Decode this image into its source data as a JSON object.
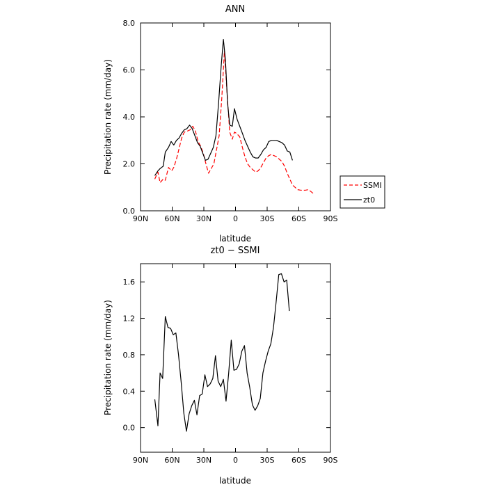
{
  "chart_data": [
    {
      "type": "line",
      "title": "ANN",
      "xlabel": "latitude",
      "ylabel": "Precipitation rate (mm/day)",
      "xlim": [
        90,
        -90
      ],
      "ylim": [
        0,
        8
      ],
      "x_ticks": [
        90,
        60,
        30,
        0,
        -30,
        -60,
        -90
      ],
      "x_tick_labels": [
        "90N",
        "60N",
        "30N",
        "0",
        "30S",
        "60S",
        "90S"
      ],
      "y_ticks": [
        0,
        2,
        4,
        6,
        8
      ],
      "y_tick_labels": [
        "0.0",
        "2.0",
        "4.0",
        "6.0",
        "8.0"
      ],
      "grid": false,
      "legend": "right",
      "series": [
        {
          "name": "SSMI",
          "color": "#ff0000",
          "style": "dashed",
          "points": [
            [
              76.5,
              1.35
            ],
            [
              73.5,
              1.65
            ],
            [
              71.5,
              1.2
            ],
            [
              68.5,
              1.35
            ],
            [
              66.5,
              1.3
            ],
            [
              63.5,
              1.85
            ],
            [
              60.5,
              1.7
            ],
            [
              58.5,
              1.85
            ],
            [
              56,
              2.2
            ],
            [
              53.5,
              2.65
            ],
            [
              51,
              3.1
            ],
            [
              48.5,
              3.35
            ],
            [
              45.5,
              3.4
            ],
            [
              43,
              3.45
            ],
            [
              40.5,
              3.6
            ],
            [
              38,
              3.4
            ],
            [
              35.5,
              2.95
            ],
            [
              33,
              2.75
            ],
            [
              30.5,
              2.45
            ],
            [
              28,
              2.0
            ],
            [
              25.5,
              1.6
            ],
            [
              23,
              1.8
            ],
            [
              20.5,
              2.0
            ],
            [
              18,
              2.6
            ],
            [
              15.5,
              3.2
            ],
            [
              13,
              4.8
            ],
            [
              10.5,
              6.8
            ],
            [
              8,
              5.0
            ],
            [
              5.5,
              3.35
            ],
            [
              3,
              3.05
            ],
            [
              1,
              3.35
            ],
            [
              -1,
              3.3
            ],
            [
              -4,
              3.15
            ],
            [
              -6.5,
              2.7
            ],
            [
              -9,
              2.3
            ],
            [
              -11.5,
              2.0
            ],
            [
              -14,
              1.85
            ],
            [
              -16.5,
              1.75
            ],
            [
              -19,
              1.65
            ],
            [
              -21.5,
              1.7
            ],
            [
              -24,
              1.85
            ],
            [
              -26.5,
              2.05
            ],
            [
              -29,
              2.25
            ],
            [
              -31.5,
              2.35
            ],
            [
              -34,
              2.4
            ],
            [
              -36.5,
              2.35
            ],
            [
              -39,
              2.3
            ],
            [
              -41.5,
              2.2
            ],
            [
              -44,
              2.1
            ],
            [
              -46.5,
              1.9
            ],
            [
              -49,
              1.6
            ],
            [
              -51.5,
              1.35
            ],
            [
              -54,
              1.1
            ],
            [
              -56.5,
              1.0
            ],
            [
              -59,
              0.9
            ],
            [
              -61.5,
              0.88
            ],
            [
              -64,
              0.87
            ],
            [
              -66.5,
              0.88
            ],
            [
              -69,
              0.9
            ],
            [
              -71.5,
              0.82
            ],
            [
              -74,
              0.73
            ]
          ]
        },
        {
          "name": "zt0",
          "color": "#000000",
          "style": "solid",
          "points": [
            [
              76.5,
              1.5
            ],
            [
              73.5,
              1.7
            ],
            [
              71.5,
              1.8
            ],
            [
              68.5,
              1.9
            ],
            [
              66.5,
              2.5
            ],
            [
              63.5,
              2.7
            ],
            [
              61,
              2.95
            ],
            [
              58.5,
              2.8
            ],
            [
              56,
              3.0
            ],
            [
              53.5,
              3.1
            ],
            [
              51,
              3.3
            ],
            [
              48.5,
              3.45
            ],
            [
              46,
              3.5
            ],
            [
              43.5,
              3.65
            ],
            [
              41,
              3.5
            ],
            [
              38.5,
              3.2
            ],
            [
              36,
              2.9
            ],
            [
              33.5,
              2.75
            ],
            [
              31,
              2.45
            ],
            [
              28.5,
              2.15
            ],
            [
              26,
              2.2
            ],
            [
              23.5,
              2.45
            ],
            [
              21,
              2.7
            ],
            [
              18.5,
              3.2
            ],
            [
              16,
              4.6
            ],
            [
              13.5,
              6.2
            ],
            [
              11.5,
              7.3
            ],
            [
              9.5,
              6.4
            ],
            [
              7.5,
              4.6
            ],
            [
              5.5,
              3.65
            ],
            [
              3,
              3.6
            ],
            [
              1,
              4.35
            ],
            [
              -1.5,
              3.9
            ],
            [
              -4,
              3.6
            ],
            [
              -6.5,
              3.3
            ],
            [
              -9,
              3.0
            ],
            [
              -11.5,
              2.75
            ],
            [
              -14,
              2.5
            ],
            [
              -16.5,
              2.3
            ],
            [
              -19,
              2.25
            ],
            [
              -21.5,
              2.25
            ],
            [
              -24,
              2.4
            ],
            [
              -26.5,
              2.6
            ],
            [
              -29,
              2.7
            ],
            [
              -31.5,
              2.95
            ],
            [
              -34,
              3.0
            ],
            [
              -36.5,
              3.0
            ],
            [
              -39,
              3.0
            ],
            [
              -41.5,
              2.95
            ],
            [
              -44,
              2.9
            ],
            [
              -46.5,
              2.8
            ],
            [
              -49,
              2.55
            ],
            [
              -51.5,
              2.5
            ],
            [
              -54,
              2.15
            ]
          ]
        }
      ]
    },
    {
      "type": "line",
      "title": "zt0 − SSMI",
      "xlabel": "latitude",
      "ylabel": "Precipitation rate (mm/day)",
      "xlim": [
        90,
        -90
      ],
      "ylim": [
        -0.27,
        1.8
      ],
      "x_ticks": [
        90,
        60,
        30,
        0,
        -30,
        -60,
        -90
      ],
      "x_tick_labels": [
        "90N",
        "60N",
        "30N",
        "0",
        "30S",
        "60S",
        "90S"
      ],
      "y_ticks": [
        0,
        0.4,
        0.8,
        1.2,
        1.6
      ],
      "y_tick_labels": [
        "0.0",
        "0.4",
        "0.8",
        "1.2",
        "1.6"
      ],
      "grid": false,
      "series": [
        {
          "color": "#000000",
          "style": "solid",
          "points": [
            [
              76.5,
              0.31
            ],
            [
              73.5,
              0.02
            ],
            [
              71.5,
              0.6
            ],
            [
              69,
              0.54
            ],
            [
              66.5,
              1.22
            ],
            [
              64,
              1.1
            ],
            [
              61.5,
              1.09
            ],
            [
              59,
              1.02
            ],
            [
              56.5,
              1.04
            ],
            [
              54,
              0.8
            ],
            [
              51.5,
              0.5
            ],
            [
              49,
              0.16
            ],
            [
              46.5,
              -0.04
            ],
            [
              44,
              0.15
            ],
            [
              41.5,
              0.24
            ],
            [
              39,
              0.3
            ],
            [
              36.5,
              0.14
            ],
            [
              34,
              0.35
            ],
            [
              31.5,
              0.37
            ],
            [
              29,
              0.58
            ],
            [
              26.5,
              0.45
            ],
            [
              24,
              0.48
            ],
            [
              21.5,
              0.54
            ],
            [
              19,
              0.79
            ],
            [
              16.5,
              0.51
            ],
            [
              14,
              0.45
            ],
            [
              11.5,
              0.53
            ],
            [
              9,
              0.29
            ],
            [
              6.5,
              0.59
            ],
            [
              4,
              0.96
            ],
            [
              1.5,
              0.63
            ],
            [
              -1,
              0.64
            ],
            [
              -3.5,
              0.7
            ],
            [
              -6,
              0.84
            ],
            [
              -8.5,
              0.9
            ],
            [
              -11,
              0.6
            ],
            [
              -13.5,
              0.44
            ],
            [
              -16,
              0.25
            ],
            [
              -18.5,
              0.19
            ],
            [
              -21,
              0.24
            ],
            [
              -23.5,
              0.32
            ],
            [
              -26,
              0.6
            ],
            [
              -28.5,
              0.73
            ],
            [
              -31,
              0.84
            ],
            [
              -33.5,
              0.92
            ],
            [
              -36,
              1.1
            ],
            [
              -38.5,
              1.38
            ],
            [
              -41,
              1.68
            ],
            [
              -43.5,
              1.69
            ],
            [
              -46,
              1.6
            ],
            [
              -48.5,
              1.62
            ],
            [
              -51,
              1.28
            ]
          ]
        }
      ]
    }
  ]
}
